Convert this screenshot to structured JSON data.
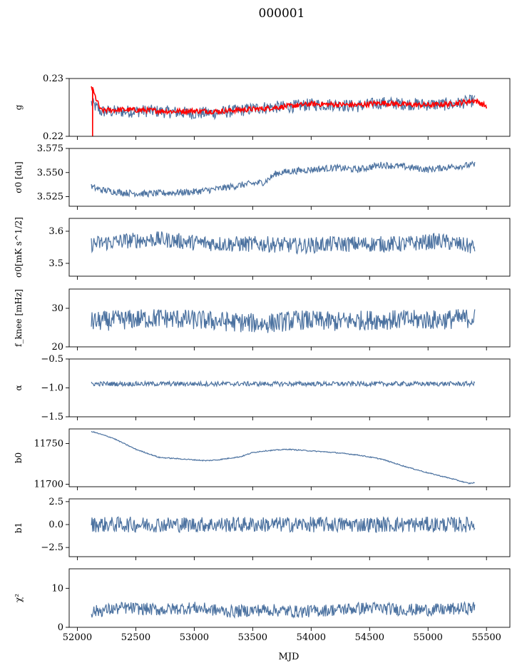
{
  "title": "000001",
  "xlabel": "MJD",
  "colors": {
    "series": "#4c72a0",
    "overlay": "#ff0000",
    "axes": "#000000"
  },
  "chart_data": [
    {
      "type": "line",
      "ylabel": "g",
      "ylim": [
        0.22,
        0.23
      ],
      "yticks": [
        "0.23",
        "0.22"
      ],
      "yvals": [
        0.23,
        0.22
      ],
      "series": [
        {
          "color": "#4c72a0",
          "x": [
            52120,
            52200,
            52400,
            52600,
            52800,
            53000,
            53200,
            53400,
            53600,
            53800,
            54000,
            54200,
            54400,
            54600,
            54800,
            55000,
            55200,
            55400
          ],
          "y": [
            0.2258,
            0.2243,
            0.2243,
            0.2244,
            0.2242,
            0.224,
            0.2241,
            0.2245,
            0.225,
            0.2251,
            0.2255,
            0.2255,
            0.2252,
            0.2258,
            0.2256,
            0.2255,
            0.2255,
            0.2262
          ]
        },
        {
          "color": "#ff0000",
          "x": [
            52120,
            52200,
            52400,
            52600,
            52800,
            53000,
            53200,
            53400,
            53600,
            53800,
            54000,
            54200,
            54400,
            54600,
            54800,
            55000,
            55200,
            55400,
            55500
          ],
          "y": [
            0.2285,
            0.2245,
            0.2246,
            0.2245,
            0.2243,
            0.2244,
            0.2243,
            0.2246,
            0.2248,
            0.2252,
            0.2256,
            0.2255,
            0.2254,
            0.2258,
            0.2255,
            0.2254,
            0.2256,
            0.2262,
            0.2252
          ]
        }
      ]
    },
    {
      "type": "line",
      "ylabel": "σ0 [du]",
      "ylim": [
        3.515,
        3.575
      ],
      "yticks": [
        "3.575",
        "3.550",
        "3.525"
      ],
      "yvals": [
        3.575,
        3.55,
        3.525
      ],
      "series": [
        {
          "color": "#4c72a0",
          "x": [
            52120,
            52200,
            52400,
            52600,
            52800,
            53000,
            53200,
            53400,
            53600,
            53700,
            53800,
            54000,
            54200,
            54400,
            54600,
            54800,
            55000,
            55200,
            55400
          ],
          "y": [
            3.535,
            3.532,
            3.529,
            3.528,
            3.529,
            3.53,
            3.533,
            3.537,
            3.54,
            3.549,
            3.551,
            3.553,
            3.555,
            3.553,
            3.558,
            3.556,
            3.553,
            3.556,
            3.558
          ]
        }
      ]
    },
    {
      "type": "line",
      "ylabel": "σ0[mK s^1/2]",
      "ylim": [
        3.46,
        3.64
      ],
      "yticks": [
        "3.6",
        "3.5"
      ],
      "yvals": [
        3.6,
        3.5
      ],
      "series": [
        {
          "color": "#4c72a0",
          "x": [
            52120,
            52400,
            52700,
            53000,
            53300,
            53600,
            53900,
            54200,
            54500,
            54800,
            55100,
            55400
          ],
          "y": [
            3.56,
            3.57,
            3.575,
            3.565,
            3.56,
            3.56,
            3.555,
            3.56,
            3.56,
            3.56,
            3.57,
            3.55
          ]
        }
      ]
    },
    {
      "type": "line",
      "ylabel": "f_knee [mHz]",
      "ylim": [
        20,
        35
      ],
      "yticks": [
        "30",
        "20"
      ],
      "yvals": [
        30,
        20
      ],
      "series": [
        {
          "color": "#4c72a0",
          "x": [
            52120,
            52400,
            52700,
            53000,
            53300,
            53600,
            53900,
            54200,
            54500,
            54800,
            55100,
            55400
          ],
          "y": [
            26.5,
            27,
            27.5,
            27,
            26.5,
            26,
            27,
            26.5,
            27,
            27,
            27,
            27.5
          ]
        }
      ]
    },
    {
      "type": "line",
      "ylabel": "α",
      "ylim": [
        -1.5,
        -0.5
      ],
      "yticks": [
        "−0.5",
        "−1.0",
        "−1.5"
      ],
      "yvals": [
        -0.5,
        -1.0,
        -1.5
      ],
      "series": [
        {
          "color": "#4c72a0",
          "x": [
            52120,
            55400
          ],
          "y": [
            -0.93,
            -0.93
          ]
        }
      ]
    },
    {
      "type": "line",
      "ylabel": "b0",
      "ylim": [
        11697,
        11768
      ],
      "yticks": [
        "11750",
        "11700"
      ],
      "yvals": [
        11750,
        11700
      ],
      "series": [
        {
          "color": "#4c72a0",
          "x": [
            52120,
            52300,
            52500,
            52700,
            52900,
            53100,
            53200,
            53400,
            53500,
            53600,
            53800,
            54000,
            54200,
            54400,
            54600,
            54800,
            55000,
            55200,
            55350,
            55400
          ],
          "y": [
            11765,
            11757,
            11743,
            11733,
            11731,
            11729,
            11730,
            11734,
            11739,
            11741,
            11743,
            11741,
            11739,
            11736,
            11731,
            11722,
            11714,
            11707,
            11701,
            11702
          ]
        }
      ]
    },
    {
      "type": "line",
      "ylabel": "b1",
      "ylim": [
        -3.5,
        2.8
      ],
      "yticks": [
        "2.5",
        "0.0",
        "−2.5"
      ],
      "yvals": [
        2.5,
        0.0,
        -2.5
      ],
      "series": [
        {
          "color": "#4c72a0",
          "x": [
            52120,
            55400
          ],
          "y": [
            0,
            0
          ]
        }
      ]
    },
    {
      "type": "line",
      "ylabel": "χ²",
      "ylim": [
        0,
        15
      ],
      "yticks": [
        "10",
        "0"
      ],
      "yvals": [
        10,
        0
      ],
      "series": [
        {
          "color": "#4c72a0",
          "x": [
            52120,
            52400,
            52700,
            53000,
            53300,
            53600,
            53900,
            54200,
            54500,
            54800,
            55100,
            55400
          ],
          "y": [
            4,
            5,
            4.5,
            5,
            4,
            4.5,
            4,
            4.5,
            5,
            4.5,
            4.5,
            5
          ]
        }
      ]
    }
  ],
  "xaxis": {
    "xlim": [
      51930,
      55700
    ],
    "ticks": [
      52000,
      52500,
      53000,
      53500,
      54000,
      54500,
      55000,
      55500
    ]
  }
}
